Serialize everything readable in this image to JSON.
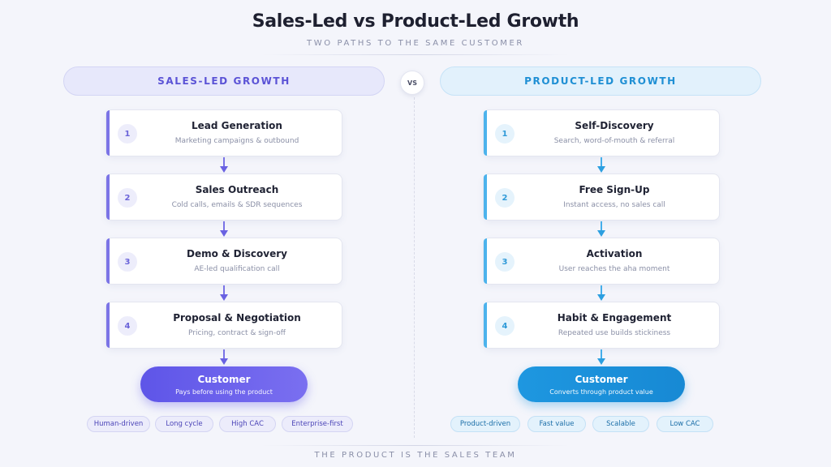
{
  "title": "Sales-Led vs Product-Led Growth",
  "subtitle": "TWO PATHS TO THE SAME CUSTOMER",
  "vs_label": "VS",
  "sales": {
    "header": "SALES-LED GROWTH",
    "accent": "#6a62e2",
    "steps": [
      {
        "num": "1",
        "title": "Lead Generation",
        "desc": "Marketing campaigns & outbound"
      },
      {
        "num": "2",
        "title": "Sales Outreach",
        "desc": "Cold calls, emails & SDR sequences"
      },
      {
        "num": "3",
        "title": "Demo & Discovery",
        "desc": "AE-led qualification call"
      },
      {
        "num": "4",
        "title": "Proposal & Negotiation",
        "desc": "Pricing, contract & sign-off"
      }
    ],
    "outcome": {
      "title": "Customer",
      "desc": "Pays before using the product"
    },
    "tags": [
      "Human-driven",
      "Long cycle",
      "High CAC",
      "Enterprise-first"
    ]
  },
  "product": {
    "header": "PRODUCT-LED GROWTH",
    "accent": "#1e97e0",
    "steps": [
      {
        "num": "1",
        "title": "Self-Discovery",
        "desc": "Search, word-of-mouth & referral"
      },
      {
        "num": "2",
        "title": "Free Sign-Up",
        "desc": "Instant access, no sales call"
      },
      {
        "num": "3",
        "title": "Activation",
        "desc": "User reaches the aha moment"
      },
      {
        "num": "4",
        "title": "Habit & Engagement",
        "desc": "Repeated use builds stickiness"
      }
    ],
    "outcome": {
      "title": "Customer",
      "desc": "Converts through product value"
    },
    "tags": [
      "Product-driven",
      "Fast value",
      "Scalable",
      "Low CAC"
    ]
  },
  "footer": "THE PRODUCT IS THE SALES TEAM"
}
